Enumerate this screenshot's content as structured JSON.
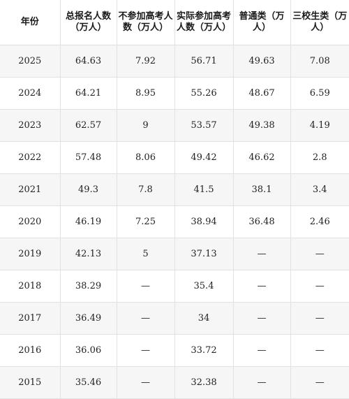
{
  "table": {
    "headers": [
      "年份",
      "总报名人数（万人）",
      "不参加高考人数（万人）",
      "实际参加高考人数（万人）",
      "普通类（万人）",
      "三校生类（万人）"
    ],
    "rows": [
      [
        "2025",
        "64.63",
        "7.92",
        "56.71",
        "49.63",
        "7.08"
      ],
      [
        "2024",
        "64.21",
        "8.95",
        "55.26",
        "48.67",
        "6.59"
      ],
      [
        "2023",
        "62.57",
        "9",
        "53.57",
        "49.38",
        "4.19"
      ],
      [
        "2022",
        "57.48",
        "8.06",
        "49.42",
        "46.62",
        "2.8"
      ],
      [
        "2021",
        "49.3",
        "7.8",
        "41.5",
        "38.1",
        "3.4"
      ],
      [
        "2020",
        "46.19",
        "7.25",
        "38.94",
        "36.48",
        "2.46"
      ],
      [
        "2019",
        "42.13",
        "5",
        "37.13",
        "—",
        "—"
      ],
      [
        "2018",
        "38.29",
        "—",
        "35.4",
        "—",
        "—"
      ],
      [
        "2017",
        "36.49",
        "—",
        "34",
        "—",
        "—"
      ],
      [
        "2016",
        "36.06",
        "—",
        "33.72",
        "—",
        "—"
      ],
      [
        "2015",
        "35.46",
        "—",
        "32.38",
        "—",
        "—"
      ]
    ]
  }
}
